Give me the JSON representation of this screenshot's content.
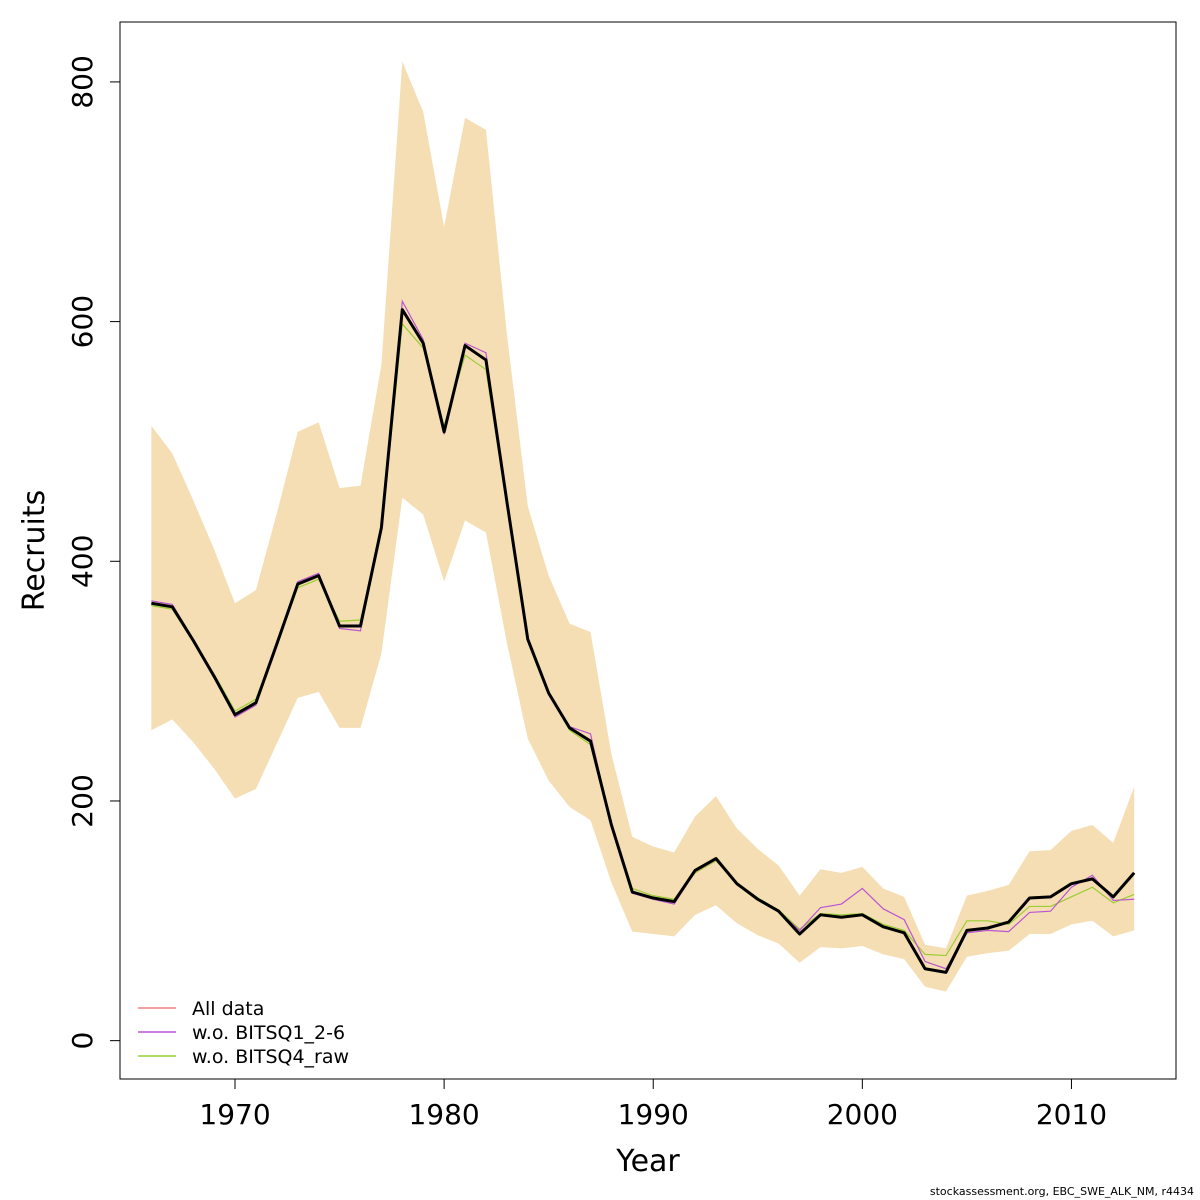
{
  "chart_data": {
    "type": "line",
    "xlabel": "Year",
    "ylabel": "Recruits",
    "xlim": [
      1964.5,
      2015
    ],
    "ylim": [
      -32,
      850
    ],
    "x_ticks": [
      1970,
      1980,
      1990,
      2000,
      2010
    ],
    "y_ticks": [
      0,
      200,
      400,
      600,
      800
    ],
    "grid": false,
    "legend_position": "bottom-left",
    "band_color": "#F5DEB3",
    "x": [
      1966,
      1967,
      1968,
      1969,
      1970,
      1971,
      1972,
      1973,
      1974,
      1975,
      1976,
      1977,
      1978,
      1979,
      1980,
      1981,
      1982,
      1983,
      1984,
      1985,
      1986,
      1987,
      1988,
      1989,
      1990,
      1991,
      1992,
      1993,
      1994,
      1995,
      1996,
      1997,
      1998,
      1999,
      2000,
      2001,
      2002,
      2003,
      2004,
      2005,
      2006,
      2007,
      2008,
      2009,
      2010,
      2011,
      2012,
      2013
    ],
    "band": {
      "lower": [
        259,
        268,
        249,
        227,
        202,
        210,
        248,
        286,
        291,
        261,
        261,
        323,
        453,
        439,
        383,
        434,
        424,
        332,
        252,
        217,
        195,
        184,
        132,
        91,
        89,
        87,
        105,
        113,
        98,
        88,
        81,
        65,
        78,
        77,
        79,
        72,
        68,
        45,
        41,
        70,
        73,
        75,
        89,
        89,
        97,
        100,
        87,
        92
      ],
      "upper": [
        513,
        490,
        451,
        410,
        365,
        376,
        440,
        508,
        516,
        461,
        463,
        564,
        817,
        775,
        679,
        770,
        760,
        590,
        446,
        388,
        348,
        341,
        239,
        170,
        162,
        157,
        187,
        204,
        177,
        160,
        146,
        121,
        143,
        140,
        145,
        127,
        120,
        80,
        77,
        121,
        125,
        130,
        158,
        159,
        175,
        180,
        165,
        212
      ]
    },
    "series": [
      {
        "name": "All data",
        "color": "#F08080",
        "values": [
          365,
          362,
          334,
          304,
          272,
          282,
          331,
          381,
          388,
          346,
          346,
          428,
          610,
          582,
          508,
          580,
          568,
          450,
          335,
          290,
          261,
          250,
          180,
          124,
          119,
          116,
          142,
          152,
          131,
          118,
          108,
          89,
          105,
          103,
          105,
          95,
          90,
          60,
          57,
          92,
          94,
          99,
          119,
          120,
          131,
          135,
          120,
          140
        ]
      },
      {
        "name": "w.o. BITSQ1_2-6",
        "color": "#BA55D3",
        "values": [
          367,
          364,
          335,
          303,
          270,
          280,
          332,
          383,
          390,
          344,
          342,
          429,
          617,
          585,
          506,
          582,
          574,
          451,
          336,
          290,
          262,
          256,
          179,
          123,
          118,
          114,
          141,
          151,
          130,
          118,
          108,
          92,
          111,
          114,
          127,
          110,
          101,
          66,
          60,
          90,
          92,
          91,
          107,
          108,
          128,
          138,
          117,
          118
        ]
      },
      {
        "name": "w.o. BITSQ4_raw",
        "color": "#9ACD32",
        "values": [
          363,
          360,
          333,
          306,
          275,
          285,
          330,
          378,
          385,
          350,
          351,
          425,
          598,
          578,
          513,
          572,
          560,
          447,
          333,
          291,
          259,
          247,
          181,
          127,
          121,
          118,
          140,
          150,
          132,
          119,
          109,
          93,
          106,
          105,
          106,
          97,
          92,
          72,
          71,
          100,
          100,
          97,
          112,
          112,
          120,
          128,
          115,
          122
        ]
      }
    ],
    "footer": "stockassessment.org, EBC_SWE_ALK_NM, r4434"
  }
}
